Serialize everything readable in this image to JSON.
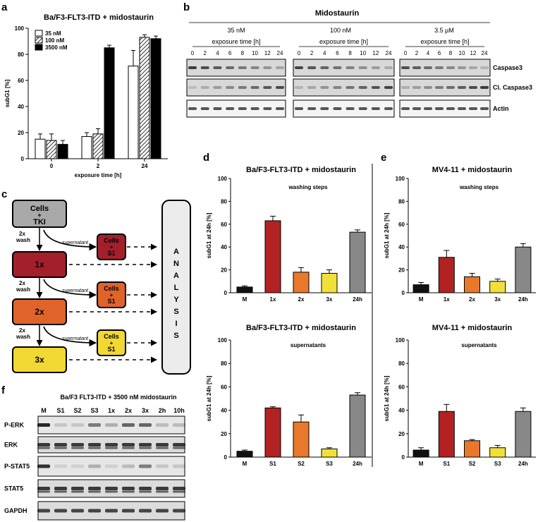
{
  "panel_labels": {
    "a": "a",
    "b": "b",
    "c": "c",
    "d": "d",
    "e": "e",
    "f": "f"
  },
  "colors": {
    "red": "#b22222",
    "orange": "#e8782a",
    "yellow": "#f2e03a",
    "gray": "#888888",
    "black": "#111111",
    "box_gray": "#a9a9a9",
    "box_red": "#a3202a",
    "box_orange": "#e0632a",
    "box_yellow": "#f2d832",
    "analysis_bg": "#ececec"
  },
  "chart_data": [
    {
      "id": "a",
      "type": "bar",
      "title": "Ba/F3-FLT3-ITD + midostaurin",
      "xlabel": "exposure time [h]",
      "ylabel": "subG1 [%]",
      "ylim": [
        0,
        100
      ],
      "yticks": [
        0,
        20,
        40,
        60,
        80,
        100
      ],
      "categories": [
        "0",
        "2",
        "24"
      ],
      "series": [
        {
          "name": "35 nM",
          "pattern": "white",
          "values": [
            15,
            17,
            71
          ],
          "errors": [
            4,
            3,
            12
          ]
        },
        {
          "name": "100 nM",
          "pattern": "hatch",
          "values": [
            14,
            19,
            93
          ],
          "errors": [
            5,
            4,
            2
          ]
        },
        {
          "name": "3500 nM",
          "pattern": "black",
          "values": [
            11,
            85,
            92
          ],
          "errors": [
            3,
            2,
            2
          ]
        }
      ]
    },
    {
      "id": "d_top",
      "type": "bar",
      "title": "Ba/F3-FLT3-ITD + midostaurin",
      "subtitle": "washing steps",
      "ylabel": "subG1 at 24h [%]",
      "ylim": [
        0,
        100
      ],
      "yticks": [
        0,
        20,
        40,
        60,
        80,
        100
      ],
      "categories": [
        "M",
        "1x",
        "2x",
        "3x",
        "24h"
      ],
      "values": [
        5,
        63,
        18,
        17,
        53
      ],
      "errors": [
        1,
        4,
        4,
        3,
        2
      ]
    },
    {
      "id": "d_bottom",
      "type": "bar",
      "title": "Ba/F3-FLT3-ITD + midostaurin",
      "subtitle": "supernatants",
      "ylabel": "subG1 at 24h [%]",
      "ylim": [
        0,
        100
      ],
      "yticks": [
        0,
        20,
        40,
        60,
        80,
        100
      ],
      "categories": [
        "M",
        "S1",
        "S2",
        "S3",
        "24h"
      ],
      "values": [
        5,
        42,
        30,
        7,
        53
      ],
      "errors": [
        1,
        1,
        6,
        1,
        2
      ]
    },
    {
      "id": "e_top",
      "type": "bar",
      "title": "MV4-11 + midostaurin",
      "subtitle": "washing steps",
      "ylabel": "subG1 at 24h [%]",
      "ylim": [
        0,
        100
      ],
      "yticks": [
        0,
        20,
        40,
        60,
        80,
        100
      ],
      "categories": [
        "M",
        "1x",
        "2x",
        "3x",
        "24h"
      ],
      "values": [
        7,
        31,
        14,
        10,
        40
      ],
      "errors": [
        2,
        6,
        3,
        2,
        3
      ]
    },
    {
      "id": "e_bottom",
      "type": "bar",
      "title": "MV4-11 + midostaurin",
      "subtitle": "supernatants",
      "ylabel": "subG1 at 24h [%]",
      "ylim": [
        0,
        100
      ],
      "yticks": [
        0,
        20,
        40,
        60,
        80,
        100
      ],
      "categories": [
        "M",
        "S1",
        "S2",
        "S3",
        "24h"
      ],
      "values": [
        6,
        39,
        14,
        8,
        39
      ],
      "errors": [
        2,
        6,
        1,
        2,
        3
      ]
    }
  ],
  "panel_b": {
    "title": "Midostaurin",
    "groups": [
      "35 nM",
      "100 nM",
      "3.5 µM"
    ],
    "exposure_label": "exposure time [h]",
    "timepoints": [
      "0",
      "2",
      "4",
      "6",
      "8",
      "10",
      "12",
      "24"
    ],
    "rows": [
      "Caspase3",
      "Cl. Caspase3",
      "Actin"
    ]
  },
  "panel_c": {
    "top_box_line1": "Cells",
    "top_box_line2": "+",
    "top_box_line3": "TKI",
    "wash_label_1": "2x",
    "wash_label_2": "wash",
    "supernatant_label": "supernatant",
    "boxes": [
      "1x",
      "2x",
      "3x"
    ],
    "side_line1": "Cells",
    "side_line2": "+",
    "side_line3": "S1",
    "analysis": [
      "A",
      "N",
      "A",
      "L",
      "Y",
      "S",
      "I",
      "S"
    ]
  },
  "panel_f": {
    "title": "Ba/F3 FLT3-ITD + 3500 nM midostaurin",
    "lanes": [
      "M",
      "S1",
      "S2",
      "S3",
      "1x",
      "2x",
      "3x",
      "2h",
      "10h"
    ],
    "rows": [
      "P-ERK",
      "ERK",
      "P-STAT5",
      "STAT5",
      "GAPDH"
    ]
  }
}
